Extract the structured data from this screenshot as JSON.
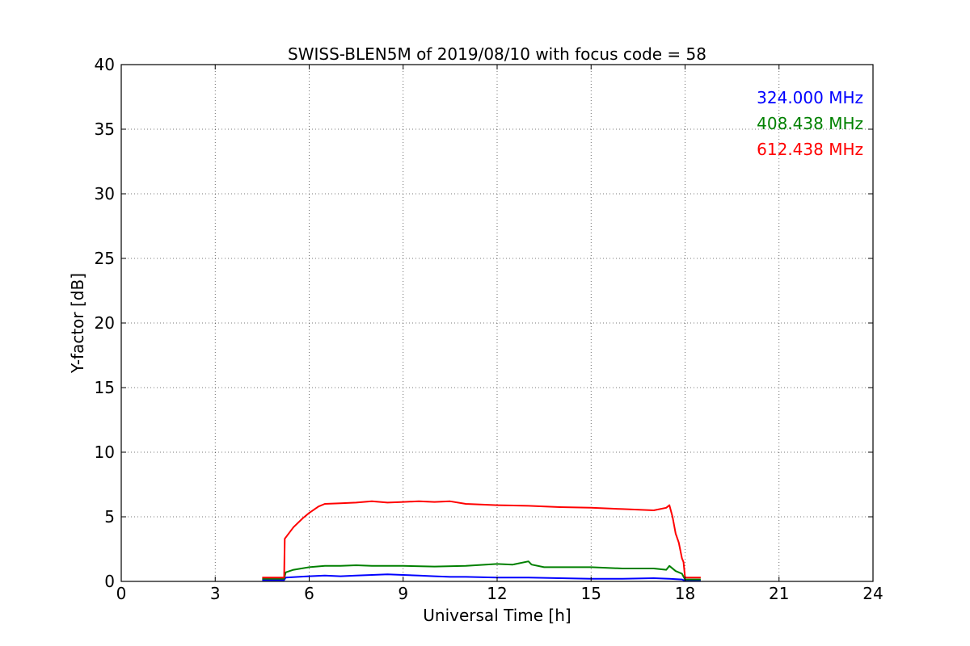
{
  "chart_data": {
    "type": "line",
    "title": "SWISS-BLEN5M of 2019/08/10 with focus code = 58",
    "xlabel": "Universal Time [h]",
    "ylabel": "Y-factor [dB]",
    "xlim": [
      0,
      24
    ],
    "ylim": [
      0,
      40
    ],
    "xticks": [
      0,
      3,
      6,
      9,
      12,
      15,
      18,
      21,
      24
    ],
    "yticks": [
      0,
      5,
      10,
      15,
      20,
      25,
      30,
      35,
      40
    ],
    "grid": true,
    "legend_position": "top-right",
    "series": [
      {
        "name": "324.000 MHz",
        "color": "#0000ff",
        "x": [
          4.5,
          5.2,
          5.25,
          6.0,
          6.5,
          7.0,
          7.5,
          8.0,
          8.5,
          9.0,
          9.5,
          10.0,
          10.5,
          11.0,
          12.0,
          13.0,
          14.0,
          15.0,
          16.0,
          17.0,
          17.5,
          17.9,
          18.0,
          18.5
        ],
        "y": [
          0.1,
          0.1,
          0.3,
          0.4,
          0.45,
          0.4,
          0.45,
          0.5,
          0.55,
          0.5,
          0.45,
          0.4,
          0.35,
          0.35,
          0.3,
          0.3,
          0.25,
          0.2,
          0.2,
          0.25,
          0.2,
          0.15,
          0.05,
          0.05
        ]
      },
      {
        "name": "408.438 MHz",
        "color": "#008000",
        "x": [
          4.5,
          5.2,
          5.25,
          5.5,
          6.0,
          6.5,
          7.0,
          7.5,
          8.0,
          8.5,
          9.0,
          10.0,
          11.0,
          12.0,
          12.5,
          13.0,
          13.1,
          13.5,
          14.0,
          15.0,
          16.0,
          17.0,
          17.4,
          17.5,
          17.7,
          17.9,
          18.0,
          18.5
        ],
        "y": [
          0.2,
          0.2,
          0.7,
          0.9,
          1.1,
          1.2,
          1.2,
          1.25,
          1.2,
          1.2,
          1.2,
          1.15,
          1.2,
          1.35,
          1.3,
          1.55,
          1.3,
          1.1,
          1.1,
          1.1,
          1.0,
          1.0,
          0.9,
          1.2,
          0.8,
          0.6,
          0.15,
          0.15
        ]
      },
      {
        "name": "612.438 MHz",
        "color": "#ff0000",
        "x": [
          4.5,
          5.1,
          5.2,
          5.22,
          5.5,
          5.8,
          6.0,
          6.3,
          6.5,
          7.0,
          7.5,
          8.0,
          8.5,
          9.0,
          9.5,
          10.0,
          10.5,
          11.0,
          12.0,
          13.0,
          14.0,
          15.0,
          16.0,
          17.0,
          17.4,
          17.5,
          17.6,
          17.7,
          17.8,
          17.9,
          17.95,
          18.0,
          18.5
        ],
        "y": [
          0.3,
          0.3,
          0.3,
          3.3,
          4.2,
          4.9,
          5.3,
          5.8,
          6.0,
          6.05,
          6.1,
          6.2,
          6.1,
          6.15,
          6.2,
          6.15,
          6.2,
          6.0,
          5.9,
          5.85,
          5.75,
          5.7,
          5.6,
          5.5,
          5.7,
          5.9,
          5.0,
          3.7,
          3.0,
          1.8,
          1.5,
          0.3,
          0.3
        ]
      }
    ]
  }
}
